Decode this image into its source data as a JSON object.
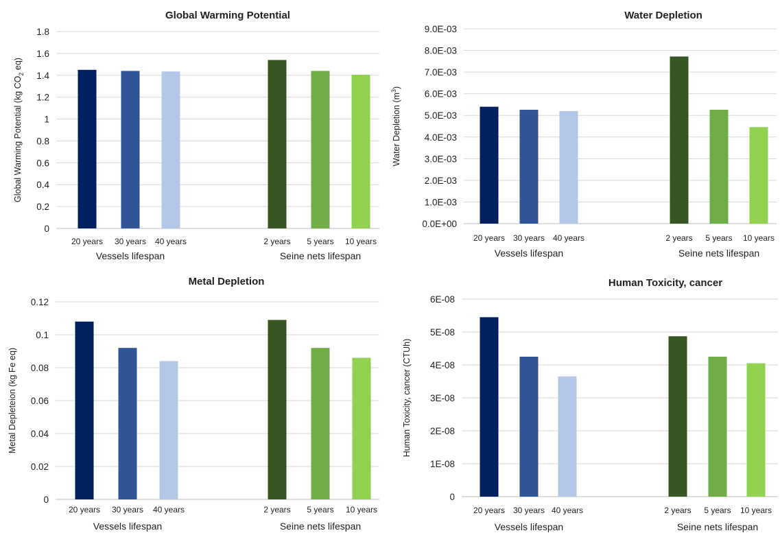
{
  "colors": {
    "vessels": [
      "#002060",
      "#2F5597",
      "#B4C7E7"
    ],
    "nets": [
      "#375623",
      "#70AD47",
      "#92D050"
    ]
  },
  "chart_data": [
    {
      "type": "bar",
      "title": "Global Warming Potential",
      "ylabel_parts": [
        {
          "text": "Global Warming Potential (kg CO",
          "shift": "normal"
        },
        {
          "text": "2",
          "shift": "sub"
        },
        {
          "text": " eq)",
          "shift": "normal"
        }
      ],
      "ylim": [
        0,
        1.8
      ],
      "yticks": [
        "0",
        "0.2",
        "0.4",
        "0.6",
        "0.8",
        "1",
        "1.2",
        "1.4",
        "1.6",
        "1.8"
      ],
      "grid": true,
      "groups": [
        {
          "label": "Vessels lifespan",
          "categories": [
            "20 years",
            "30 years",
            "40 years"
          ],
          "values": [
            1.45,
            1.44,
            1.435
          ]
        },
        {
          "label": "Seine nets lifespan",
          "categories": [
            "2 years",
            "5 years",
            "10 years"
          ],
          "values": [
            1.54,
            1.44,
            1.405
          ]
        }
      ]
    },
    {
      "type": "bar",
      "title": "Water Depletion",
      "ylabel_parts": [
        {
          "text": "Water Depletion (m",
          "shift": "normal"
        },
        {
          "text": "3",
          "shift": "super"
        },
        {
          "text": ")",
          "shift": "normal"
        }
      ],
      "ylim": [
        0,
        0.009
      ],
      "yticks": [
        "0.0E+00",
        "1.0E-03",
        "2.0E-03",
        "3.0E-03",
        "4.0E-03",
        "5.0E-03",
        "6.0E-03",
        "7.0E-03",
        "8.0E-03",
        "9.0E-03"
      ],
      "grid": true,
      "groups": [
        {
          "label": "Vessels lifespan",
          "categories": [
            "20 years",
            "30 years",
            "40 years"
          ],
          "values": [
            0.0054,
            0.00526,
            0.0052
          ]
        },
        {
          "label": "Seine nets lifespan",
          "categories": [
            "2 years",
            "5 years",
            "10 years"
          ],
          "values": [
            0.00772,
            0.00526,
            0.00446
          ]
        }
      ]
    },
    {
      "type": "bar",
      "title": "Metal Depletion",
      "ylabel_parts": [
        {
          "text": "Metal Depleteion (kg Fe eq)",
          "shift": "normal"
        }
      ],
      "ylim": [
        0,
        0.12
      ],
      "yticks": [
        "0",
        "0.02",
        "0.04",
        "0.06",
        "0.08",
        "0.1",
        "0.12"
      ],
      "grid": true,
      "groups": [
        {
          "label": "Vessels lifespan",
          "categories": [
            "20 years",
            "30 years",
            "40 years"
          ],
          "values": [
            0.108,
            0.092,
            0.084
          ]
        },
        {
          "label": "Seine nets lifespan",
          "categories": [
            "2 years",
            "5 years",
            "10 years"
          ],
          "values": [
            0.109,
            0.092,
            0.086
          ]
        }
      ]
    },
    {
      "type": "bar",
      "title": "Human Toxicity, cancer",
      "ylabel_parts": [
        {
          "text": "Human Toxicity, cancer (CTUh)",
          "shift": "normal"
        }
      ],
      "ylim": [
        0,
        6e-08
      ],
      "yticks": [
        "0",
        "1E-08",
        "2E-08",
        "3E-08",
        "4E-08",
        "5E-08",
        "6E-08"
      ],
      "grid": true,
      "groups": [
        {
          "label": "Vessels lifespan",
          "categories": [
            "20 years",
            "30 years",
            "40 years"
          ],
          "values": [
            5.45e-08,
            4.25e-08,
            3.65e-08
          ]
        },
        {
          "label": "Seine nets lifespan",
          "categories": [
            "2 years",
            "5 years",
            "10 years"
          ],
          "values": [
            4.87e-08,
            4.25e-08,
            4.05e-08
          ]
        }
      ]
    }
  ]
}
